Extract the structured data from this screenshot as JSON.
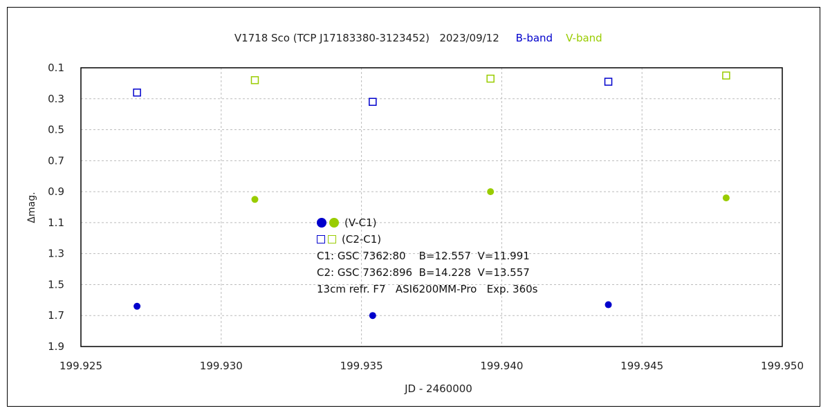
{
  "chart_data": {
    "type": "scatter",
    "title": "V1718 Sco (TCP J17183380-3123452)   2023/09/12",
    "legend_bands": [
      {
        "name": "B-band",
        "color": "#0000cc"
      },
      {
        "name": "V-band",
        "color": "#99cc00"
      }
    ],
    "xlabel": "JD - 2460000",
    "ylabel": "Δmag.",
    "xlim": [
      199.925,
      199.95
    ],
    "ylim": [
      0.1,
      1.9
    ],
    "y_inverted": true,
    "x_ticks": [
      "199.925",
      "199.930",
      "199.935",
      "199.940",
      "199.945",
      "199.950"
    ],
    "y_ticks": [
      "0.1",
      "0.3",
      "0.5",
      "0.7",
      "0.9",
      "1.1",
      "1.3",
      "1.5",
      "1.7",
      "1.9"
    ],
    "grid": true,
    "series": [
      {
        "label": "(V-C1) B",
        "band": "B",
        "marker": "filled-circle",
        "color": "#0000cc",
        "x": [
          199.927,
          199.9354,
          199.9438
        ],
        "y": [
          1.64,
          1.7,
          1.63
        ]
      },
      {
        "label": "(V-C1) V",
        "band": "V",
        "marker": "filled-circle",
        "color": "#99cc00",
        "x": [
          199.9312,
          199.9396,
          199.948
        ],
        "y": [
          0.95,
          0.9,
          0.94
        ]
      },
      {
        "label": "(C2-C1) B",
        "band": "B",
        "marker": "open-square",
        "color": "#0000cc",
        "x": [
          199.927,
          199.9354,
          199.9438
        ],
        "y": [
          0.26,
          0.32,
          0.19
        ]
      },
      {
        "label": "(C2-C1) V",
        "band": "V",
        "marker": "open-square",
        "color": "#99cc00",
        "x": [
          199.9312,
          199.9396,
          199.948
        ],
        "y": [
          0.18,
          0.17,
          0.15
        ]
      }
    ],
    "annotations": {
      "legend_vc1": "(V-C1)",
      "legend_c2c1": "(C2-C1)",
      "c1": "C1: GSC 7362:80    B=12.557  V=11.991",
      "c2": "C2: GSC 7362:896  B=14.228  V=13.557",
      "setup": "13cm refr. F7   ASI6200MM-Pro   Exp. 360s"
    }
  }
}
